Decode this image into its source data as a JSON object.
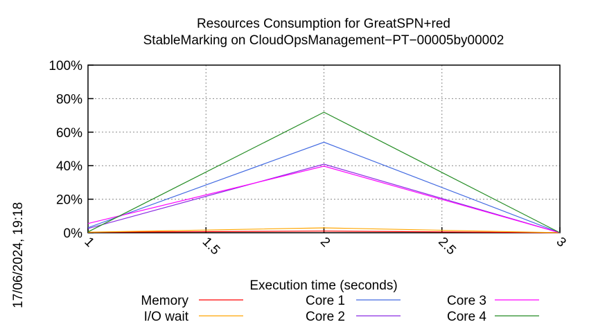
{
  "chart_data": {
    "type": "line",
    "title_lines": [
      "Resources Consumption for GreatSPN+red",
      "StableMarking on CloudOpsManagement−PT−00005by00002"
    ],
    "xlabel": "Execution time (seconds)",
    "ylabel": "",
    "xlim": [
      1,
      3
    ],
    "ylim": [
      0,
      100
    ],
    "x_ticks": [
      1,
      1.5,
      2,
      2.5,
      3
    ],
    "x_tick_labels": [
      "1",
      "1.5",
      "2",
      "2.5",
      "3"
    ],
    "y_ticks": [
      0,
      20,
      40,
      60,
      80,
      100
    ],
    "y_tick_labels": [
      "0%",
      "20%",
      "40%",
      "60%",
      "80%",
      "100%"
    ],
    "grid": true,
    "legend_position": "bottom",
    "timestamp": "17/06/2024, 19:18",
    "x": [
      1,
      2,
      3
    ],
    "series": [
      {
        "name": "Memory",
        "color": "#ff0000",
        "values": [
          0.3,
          1.0,
          0
        ]
      },
      {
        "name": "I/O wait",
        "color": "#ffa500",
        "values": [
          0.3,
          2.9,
          0
        ]
      },
      {
        "name": "Core 1",
        "color": "#4169e1",
        "values": [
          3.0,
          54.0,
          0
        ]
      },
      {
        "name": "Core 2",
        "color": "#8a2be2",
        "values": [
          2.5,
          40.9,
          0
        ]
      },
      {
        "name": "Core 3",
        "color": "#ff00ff",
        "values": [
          5.5,
          39.7,
          0
        ]
      },
      {
        "name": "Core 4",
        "color": "#228b22",
        "values": [
          0.5,
          71.9,
          0
        ]
      }
    ]
  }
}
